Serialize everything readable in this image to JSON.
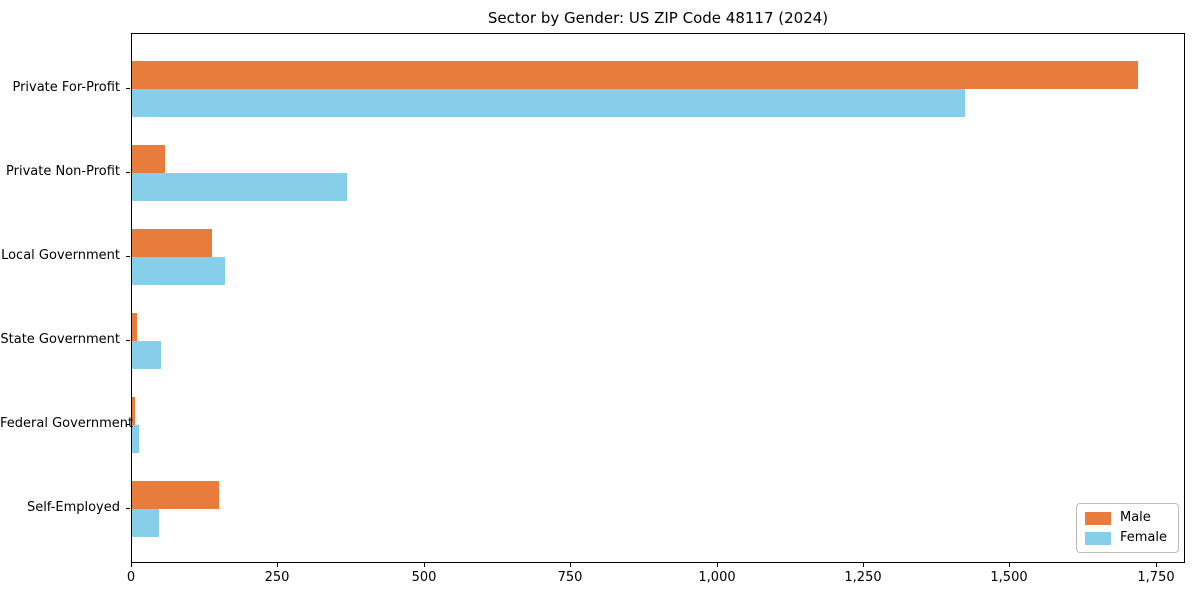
{
  "title": "Sector by Gender: US ZIP Code 48117 (2024)",
  "colors": {
    "male": "#e87c3c",
    "female": "#87ceeb",
    "axis": "#000000",
    "background": "#ffffff",
    "legend_border": "#bbbbbb"
  },
  "legend": {
    "position": "lower right",
    "items": [
      {
        "label": "Male",
        "color": "#e87c3c"
      },
      {
        "label": "Female",
        "color": "#87ceeb"
      }
    ]
  },
  "chart_data": {
    "type": "bar",
    "orientation": "horizontal",
    "title": "Sector by Gender: US ZIP Code 48117 (2024)",
    "xlabel": "",
    "ylabel": "",
    "categories": [
      "Private For-Profit",
      "Private Non-Profit",
      "Local Government",
      "State Government",
      "Federal Government",
      "Self-Employed"
    ],
    "series": [
      {
        "name": "Male",
        "color": "#e87c3c",
        "values": [
          1718,
          56,
          137,
          9,
          5,
          149
        ]
      },
      {
        "name": "Female",
        "color": "#87ceeb",
        "values": [
          1422,
          368,
          159,
          50,
          12,
          46
        ]
      }
    ],
    "xlim": [
      0,
      1800
    ],
    "xticks": [
      0,
      250,
      500,
      750,
      1000,
      1250,
      1500,
      1750
    ],
    "xtick_labels": [
      "0",
      "250",
      "500",
      "750",
      "1,000",
      "1,250",
      "1,500",
      "1,750"
    ],
    "grid": false,
    "legend_position": "lower right"
  }
}
